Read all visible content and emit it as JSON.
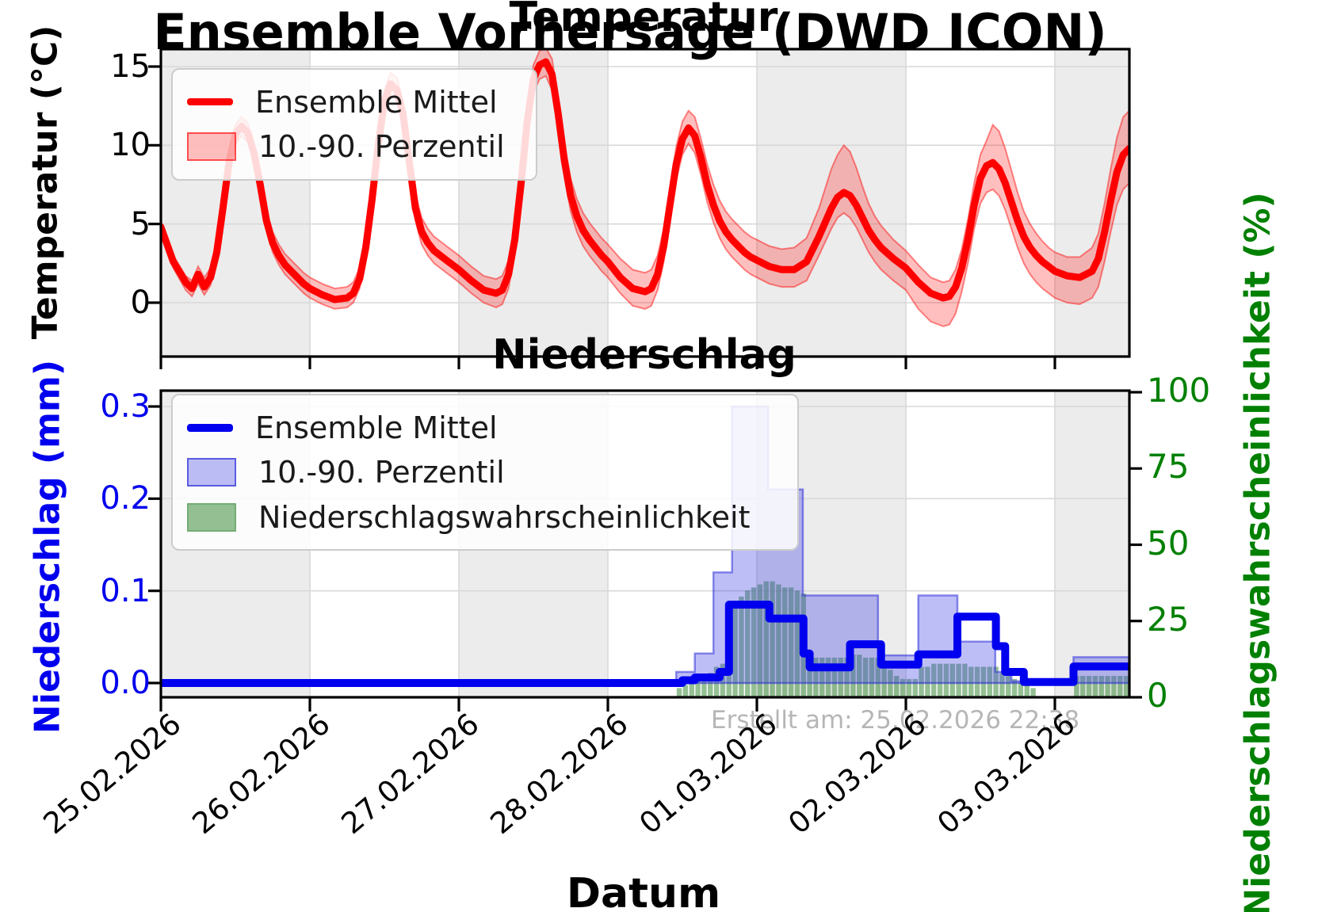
{
  "title": "Ensemble Vorhersage (DWD ICON)",
  "watermark": "Erstellt am: 25.02.2026 22:38",
  "xlabel": "Datum",
  "xticks": [
    "25.02.2026",
    "26.02.2026",
    "27.02.2026",
    "28.02.2026",
    "01.03.2026",
    "02.03.2026",
    "03.03.2026"
  ],
  "colors": {
    "temperature_line": "#ff0000",
    "temperature_band_fill": "rgba(255,0,0,0.25)",
    "temperature_band_edge": "rgba(255,0,0,0.45)",
    "precip_line": "#0000ee",
    "precip_band_fill": "rgba(70,70,230,0.35)",
    "precip_band_edge": "rgba(50,50,220,0.55)",
    "probability_bar": "rgba(60,140,60,0.55)",
    "prob_axis_green": "#008000",
    "day_shading": "#ececec",
    "gridline": "#d8d8d8",
    "watermark_gray": "#b6b6b6"
  },
  "chart_data": [
    {
      "type": "line",
      "title": "Temperatur",
      "ylabel": "Temperatur (°C)",
      "yticks": [
        0,
        5,
        10,
        15
      ],
      "ylim": [
        -3.4,
        16.1
      ],
      "xlim_hours": [
        0,
        156
      ],
      "x_unit": "hours since 25.02.2026 00:00",
      "legend": [
        "Ensemble Mittel",
        "10.-90. Perzentil"
      ],
      "grid": true,
      "night_day_shading": "alternating gray per day starting 25.02",
      "series_hour_mean_p10_p90": [
        [
          0,
          4.8,
          4.4,
          5.2
        ],
        [
          2,
          2.6,
          2.2,
          3.0
        ],
        [
          4,
          1.3,
          0.8,
          1.7
        ],
        [
          5,
          0.9,
          0.4,
          1.4
        ],
        [
          6,
          1.8,
          1.2,
          2.3
        ],
        [
          7,
          1.0,
          0.5,
          1.6
        ],
        [
          8,
          1.6,
          1.1,
          2.2
        ],
        [
          9,
          3.2,
          2.7,
          3.8
        ],
        [
          10,
          6.0,
          5.4,
          6.6
        ],
        [
          11,
          9.0,
          8.4,
          9.6
        ],
        [
          12,
          10.7,
          10.1,
          11.3
        ],
        [
          13,
          11.2,
          10.6,
          11.8
        ],
        [
          14,
          10.8,
          10.2,
          11.4
        ],
        [
          15,
          9.5,
          8.9,
          10.1
        ],
        [
          16,
          7.5,
          6.9,
          8.1
        ],
        [
          17,
          5.2,
          4.6,
          5.9
        ],
        [
          18,
          3.8,
          3.2,
          4.5
        ],
        [
          19,
          3.0,
          2.4,
          3.7
        ],
        [
          20,
          2.4,
          1.8,
          3.1
        ],
        [
          21,
          2.0,
          1.4,
          2.7
        ],
        [
          22,
          1.6,
          1.0,
          2.3
        ],
        [
          23,
          1.2,
          0.6,
          1.9
        ],
        [
          24,
          0.9,
          0.3,
          1.6
        ],
        [
          26,
          0.5,
          -0.1,
          1.2
        ],
        [
          28,
          0.2,
          -0.4,
          0.9
        ],
        [
          30,
          0.3,
          -0.3,
          1.0
        ],
        [
          31,
          0.6,
          0.0,
          1.3
        ],
        [
          32,
          1.5,
          0.9,
          2.2
        ],
        [
          33,
          3.5,
          2.9,
          4.2
        ],
        [
          34,
          6.5,
          5.8,
          7.2
        ],
        [
          35,
          10.0,
          9.3,
          10.7
        ],
        [
          36,
          12.8,
          12.1,
          13.5
        ],
        [
          37,
          13.9,
          13.2,
          14.6
        ],
        [
          38,
          13.5,
          12.8,
          14.3
        ],
        [
          39,
          12.0,
          11.2,
          12.8
        ],
        [
          40,
          9.0,
          8.2,
          9.9
        ],
        [
          41,
          6.0,
          5.2,
          6.9
        ],
        [
          42,
          4.5,
          3.7,
          5.4
        ],
        [
          43,
          3.8,
          3.0,
          4.7
        ],
        [
          44,
          3.3,
          2.5,
          4.2
        ],
        [
          45,
          3.0,
          2.2,
          3.9
        ],
        [
          46,
          2.7,
          1.9,
          3.6
        ],
        [
          47,
          2.4,
          1.6,
          3.3
        ],
        [
          48,
          2.1,
          1.3,
          3.0
        ],
        [
          50,
          1.4,
          0.6,
          2.3
        ],
        [
          52,
          0.8,
          0.0,
          1.7
        ],
        [
          54,
          0.6,
          -0.3,
          1.5
        ],
        [
          55,
          0.8,
          -0.1,
          1.7
        ],
        [
          56,
          1.8,
          0.9,
          2.7
        ],
        [
          57,
          4.0,
          3.1,
          4.9
        ],
        [
          58,
          7.5,
          6.6,
          8.4
        ],
        [
          59,
          11.5,
          10.6,
          12.4
        ],
        [
          60,
          14.2,
          13.3,
          15.1
        ],
        [
          61,
          15.1,
          14.2,
          16.0
        ],
        [
          62,
          15.3,
          14.4,
          16.2
        ],
        [
          63,
          14.5,
          13.5,
          15.5
        ],
        [
          64,
          12.0,
          11.0,
          13.0
        ],
        [
          65,
          9.0,
          8.0,
          10.1
        ],
        [
          66,
          6.8,
          5.8,
          7.9
        ],
        [
          67,
          5.5,
          4.5,
          6.6
        ],
        [
          68,
          4.6,
          3.6,
          5.7
        ],
        [
          69,
          4.0,
          3.0,
          5.1
        ],
        [
          70,
          3.5,
          2.5,
          4.6
        ],
        [
          71,
          3.0,
          2.0,
          4.1
        ],
        [
          72,
          2.6,
          1.6,
          3.7
        ],
        [
          74,
          1.6,
          0.6,
          2.8
        ],
        [
          76,
          0.9,
          -0.2,
          2.1
        ],
        [
          78,
          0.7,
          -0.4,
          1.9
        ],
        [
          79,
          0.9,
          -0.2,
          2.1
        ],
        [
          80,
          1.8,
          0.8,
          3.0
        ],
        [
          81,
          3.6,
          2.6,
          4.7
        ],
        [
          82,
          6.2,
          5.2,
          7.3
        ],
        [
          83,
          8.8,
          7.8,
          9.9
        ],
        [
          84,
          10.4,
          9.4,
          11.5
        ],
        [
          85,
          11.1,
          10.1,
          12.2
        ],
        [
          86,
          10.6,
          9.5,
          11.8
        ],
        [
          87,
          9.2,
          8.1,
          10.4
        ],
        [
          88,
          7.5,
          6.4,
          8.8
        ],
        [
          89,
          6.2,
          5.1,
          7.5
        ],
        [
          90,
          5.2,
          4.1,
          6.5
        ],
        [
          91,
          4.5,
          3.4,
          5.8
        ],
        [
          92,
          4.0,
          2.9,
          5.3
        ],
        [
          93,
          3.6,
          2.5,
          4.9
        ],
        [
          94,
          3.2,
          2.1,
          4.5
        ],
        [
          95,
          2.9,
          1.8,
          4.2
        ],
        [
          96,
          2.7,
          1.6,
          4.0
        ],
        [
          98,
          2.3,
          1.2,
          3.6
        ],
        [
          100,
          2.1,
          1.0,
          3.4
        ],
        [
          102,
          2.1,
          1.0,
          3.5
        ],
        [
          104,
          2.6,
          1.4,
          4.1
        ],
        [
          106,
          4.2,
          3.0,
          6.0
        ],
        [
          108,
          6.0,
          4.7,
          8.5
        ],
        [
          109,
          6.7,
          5.4,
          9.4
        ],
        [
          110,
          7.0,
          5.7,
          10.0
        ],
        [
          111,
          6.8,
          5.4,
          9.6
        ],
        [
          112,
          6.2,
          4.8,
          8.6
        ],
        [
          113,
          5.4,
          4.0,
          7.4
        ],
        [
          114,
          4.6,
          3.2,
          6.3
        ],
        [
          115,
          4.0,
          2.6,
          5.5
        ],
        [
          116,
          3.5,
          2.1,
          4.9
        ],
        [
          118,
          2.8,
          1.4,
          4.0
        ],
        [
          120,
          2.2,
          0.8,
          3.3
        ],
        [
          122,
          1.3,
          -0.4,
          2.4
        ],
        [
          124,
          0.6,
          -1.2,
          1.6
        ],
        [
          126,
          0.3,
          -1.5,
          1.3
        ],
        [
          127,
          0.4,
          -1.4,
          1.4
        ],
        [
          128,
          1.0,
          -0.7,
          2.1
        ],
        [
          129,
          2.2,
          0.7,
          3.4
        ],
        [
          130,
          4.0,
          2.5,
          5.3
        ],
        [
          131,
          6.2,
          4.7,
          7.6
        ],
        [
          132,
          7.9,
          6.3,
          9.4
        ],
        [
          133,
          8.7,
          7.0,
          10.3
        ],
        [
          134,
          8.9,
          7.2,
          11.3
        ],
        [
          135,
          8.5,
          6.8,
          10.9
        ],
        [
          136,
          7.6,
          5.9,
          9.8
        ],
        [
          137,
          6.4,
          4.7,
          8.4
        ],
        [
          138,
          5.2,
          3.5,
          7.0
        ],
        [
          139,
          4.2,
          2.5,
          5.8
        ],
        [
          140,
          3.5,
          1.8,
          5.0
        ],
        [
          141,
          3.0,
          1.3,
          4.4
        ],
        [
          142,
          2.6,
          0.9,
          3.9
        ],
        [
          143,
          2.3,
          0.6,
          3.5
        ],
        [
          144,
          2.0,
          0.3,
          3.2
        ],
        [
          146,
          1.7,
          0.0,
          2.9
        ],
        [
          148,
          1.6,
          -0.1,
          2.9
        ],
        [
          150,
          2.0,
          0.3,
          3.5
        ],
        [
          151,
          2.8,
          1.0,
          4.4
        ],
        [
          152,
          4.5,
          2.6,
          6.3
        ],
        [
          153,
          6.5,
          4.5,
          8.5
        ],
        [
          154,
          8.3,
          6.2,
          10.5
        ],
        [
          155,
          9.4,
          7.2,
          11.8
        ],
        [
          156,
          9.8,
          7.6,
          12.2
        ]
      ]
    },
    {
      "type": "line+bar",
      "title": "Niederschlag",
      "ylabel_left": "Niederschlag (mm)",
      "ylabel_right": "Niederschlagswahrscheinlichkeit (%)",
      "yticks_left": [
        0.0,
        0.1,
        0.2,
        0.3
      ],
      "yticks_right": [
        0,
        25,
        50,
        75,
        100
      ],
      "ylim_left": [
        -0.016,
        0.317
      ],
      "ylim_right": [
        0,
        100.5
      ],
      "legend": [
        "Ensemble Mittel",
        "10.-90. Perzentil",
        "Niederschlagswahrscheinlichkeit"
      ],
      "grid": true,
      "mean_steps_mm": [
        [
          0,
          84,
          0.0
        ],
        [
          84,
          86,
          0.003
        ],
        [
          86,
          90,
          0.006
        ],
        [
          90,
          91.5,
          0.012
        ],
        [
          91.5,
          98,
          0.085
        ],
        [
          98,
          103.5,
          0.07
        ],
        [
          103.5,
          104.5,
          0.032
        ],
        [
          104.5,
          111,
          0.017
        ],
        [
          111,
          116,
          0.042
        ],
        [
          116,
          122,
          0.02
        ],
        [
          122,
          128.3,
          0.031
        ],
        [
          128.3,
          134.5,
          0.072
        ],
        [
          134.5,
          136,
          0.04
        ],
        [
          136,
          139,
          0.012
        ],
        [
          139,
          147,
          0.001
        ],
        [
          147,
          156,
          0.018
        ]
      ],
      "band_p90_steps_mm": [
        [
          0,
          83,
          0.001
        ],
        [
          83,
          86,
          0.012
        ],
        [
          86,
          89,
          0.032
        ],
        [
          89,
          92,
          0.12
        ],
        [
          92,
          97.8,
          0.3
        ],
        [
          97.8,
          103.4,
          0.21
        ],
        [
          103.4,
          115.5,
          0.095
        ],
        [
          115.5,
          122,
          0.03
        ],
        [
          122,
          128.3,
          0.095
        ],
        [
          128.3,
          134.4,
          0.045
        ],
        [
          134.4,
          137,
          0.012
        ],
        [
          137,
          147,
          0.002
        ],
        [
          147,
          156,
          0.028
        ]
      ],
      "band_p10_mm": 0.0,
      "probability_bars_hour_pct": [
        [
          83,
          3
        ],
        [
          84,
          4
        ],
        [
          85,
          5
        ],
        [
          86,
          6
        ],
        [
          87,
          7
        ],
        [
          88,
          8
        ],
        [
          89,
          10
        ],
        [
          90,
          11
        ],
        [
          91,
          13
        ],
        [
          92,
          30
        ],
        [
          93,
          33
        ],
        [
          94,
          35
        ],
        [
          95,
          36
        ],
        [
          96,
          37
        ],
        [
          97,
          38
        ],
        [
          98,
          38
        ],
        [
          99,
          37
        ],
        [
          100,
          36
        ],
        [
          101,
          36
        ],
        [
          102,
          35
        ],
        [
          103,
          34
        ],
        [
          104,
          14
        ],
        [
          105,
          13
        ],
        [
          106,
          13
        ],
        [
          107,
          13
        ],
        [
          108,
          13
        ],
        [
          109,
          13
        ],
        [
          110,
          13
        ],
        [
          111,
          14
        ],
        [
          112,
          14
        ],
        [
          113,
          13
        ],
        [
          114,
          13
        ],
        [
          115,
          13
        ],
        [
          116,
          10
        ],
        [
          117,
          9
        ],
        [
          118,
          7
        ],
        [
          119,
          6
        ],
        [
          120,
          6
        ],
        [
          121,
          6
        ],
        [
          122,
          10
        ],
        [
          123,
          10
        ],
        [
          124,
          11
        ],
        [
          125,
          11
        ],
        [
          126,
          11
        ],
        [
          127,
          11
        ],
        [
          128,
          11
        ],
        [
          129,
          11
        ],
        [
          130,
          10
        ],
        [
          131,
          10
        ],
        [
          132,
          10
        ],
        [
          133,
          10
        ],
        [
          134,
          10
        ],
        [
          135,
          8
        ],
        [
          136,
          7
        ],
        [
          137,
          6
        ],
        [
          138,
          5
        ],
        [
          139,
          4
        ],
        [
          140,
          3
        ],
        [
          147,
          7
        ],
        [
          148,
          7
        ],
        [
          149,
          7
        ],
        [
          150,
          7
        ],
        [
          151,
          7
        ],
        [
          152,
          7
        ],
        [
          153,
          7
        ],
        [
          154,
          7
        ],
        [
          155,
          7
        ]
      ]
    }
  ]
}
